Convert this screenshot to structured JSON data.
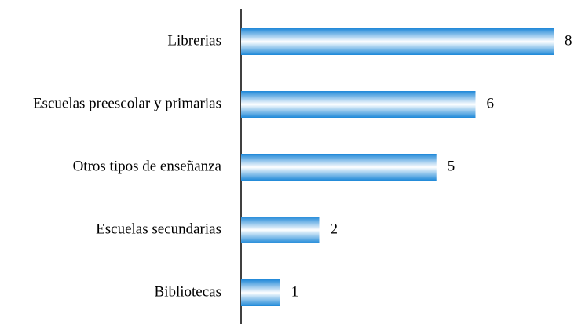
{
  "chart_data": {
    "type": "barh",
    "categories": [
      "Librerias",
      "Escuelas preescolar y primarias",
      "Otros tipos de enseñanza",
      "Escuelas secundarias",
      "Bibliotecas"
    ],
    "values": [
      8,
      6,
      5,
      2,
      1
    ],
    "color": "#1e88d8",
    "xlim": [
      0,
      8
    ]
  }
}
